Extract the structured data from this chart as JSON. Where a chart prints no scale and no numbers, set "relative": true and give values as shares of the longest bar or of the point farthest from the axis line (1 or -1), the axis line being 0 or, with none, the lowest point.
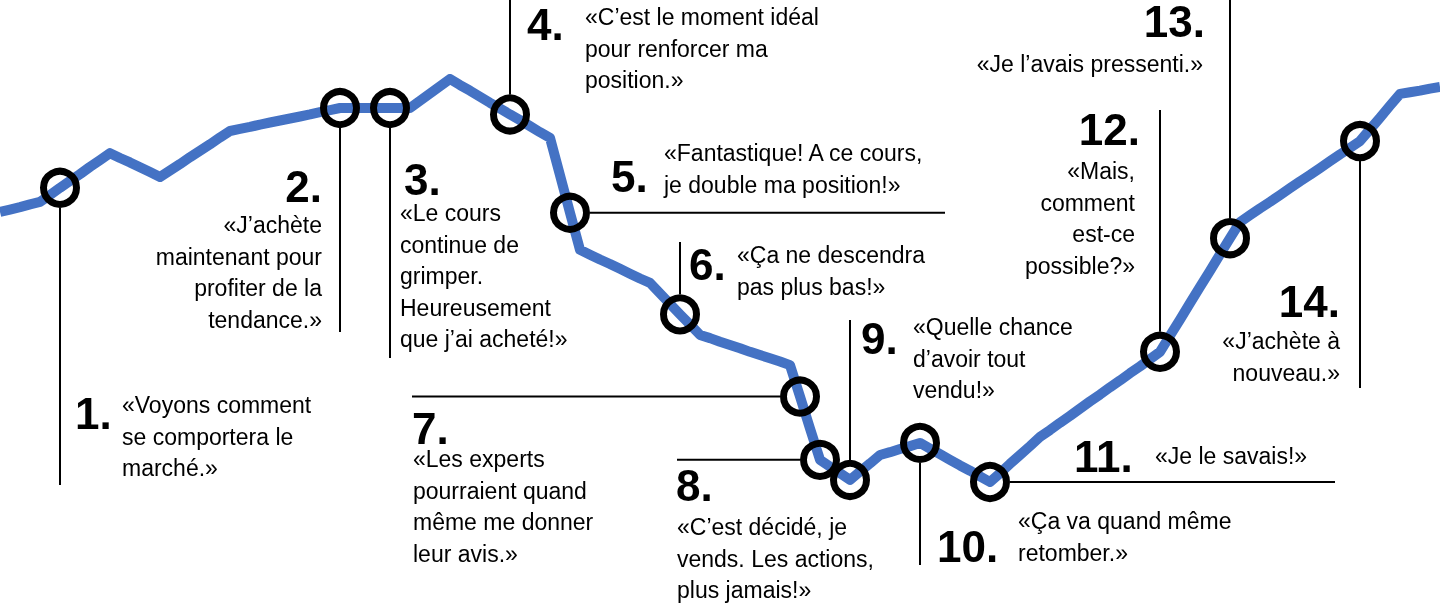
{
  "chart_data": {
    "type": "line",
    "relative": true,
    "categories": [
      null,
      null,
      null,
      null,
      null,
      null,
      null,
      null,
      null,
      null,
      null,
      null,
      null,
      null,
      null,
      null,
      null,
      null,
      null,
      null,
      null,
      null,
      null,
      null,
      null,
      null,
      null,
      null,
      null,
      null,
      null,
      null,
      null,
      null,
      null,
      null,
      null,
      null,
      null,
      null,
      null,
      null,
      null,
      null,
      null,
      null,
      null,
      null,
      null,
      null,
      null,
      null,
      null,
      null,
      null,
      null,
      null,
      null,
      null,
      null,
      null,
      null,
      null,
      null,
      null,
      null,
      null,
      null,
      null,
      null,
      null,
      null,
      null,
      null,
      null,
      null,
      null,
      null,
      null,
      null,
      null,
      null,
      null,
      null,
      null,
      null,
      null,
      null,
      null,
      null,
      null,
      null,
      null,
      null,
      null,
      null,
      null,
      null,
      null,
      null,
      null,
      null,
      null,
      null,
      null,
      null,
      null,
      null,
      null,
      null,
      null,
      null,
      null,
      null,
      null,
      null,
      null,
      null,
      null,
      null,
      null,
      null,
      null,
      null,
      null,
      null,
      null,
      null,
      null,
      null,
      null,
      null,
      null,
      null,
      null,
      null,
      null,
      null,
      null,
      null,
      null,
      null,
      null,
      null,
      null
    ],
    "series": [
      {
        "color": "#4472c4",
        "values": [
          0.67,
          0.676,
          0.682,
          0.689,
          0.695,
          0.712,
          0.73,
          0.747,
          0.764,
          0.782,
          0.799,
          0.816,
          0.804,
          0.793,
          0.781,
          0.769,
          0.757,
          0.773,
          0.789,
          0.806,
          0.822,
          0.838,
          0.855,
          0.871,
          0.876,
          0.881,
          0.887,
          0.892,
          0.897,
          0.902,
          0.907,
          0.912,
          0.918,
          0.923,
          0.928,
          0.928,
          0.928,
          0.928,
          0.928,
          0.928,
          0.928,
          0.928,
          0.946,
          0.964,
          0.982,
          1,
          0.985,
          0.971,
          0.956,
          0.941,
          0.927,
          0.912,
          0.898,
          0.883,
          0.868,
          0.854,
          0.761,
          0.668,
          0.576,
          0.564,
          0.552,
          0.541,
          0.529,
          0.517,
          0.505,
          0.494,
          0.468,
          0.442,
          0.416,
          0.391,
          0.365,
          0.357,
          0.348,
          0.34,
          0.332,
          0.323,
          0.315,
          0.307,
          0.299,
          0.29,
          0.212,
          0.133,
          0.055,
          0.038,
          0.022,
          0.005,
          0.026,
          0.046,
          0.067,
          0.074,
          0.082,
          0.089,
          0.097,
          0.083,
          0.069,
          0.055,
          0.041,
          0.028,
          0.014,
          0,
          0.022,
          0.045,
          0.067,
          0.089,
          0.112,
          0.129,
          0.147,
          0.164,
          0.182,
          0.2,
          0.217,
          0.235,
          0.252,
          0.27,
          0.287,
          0.305,
          0.323,
          0.363,
          0.403,
          0.444,
          0.484,
          0.524,
          0.565,
          0.605,
          0.645,
          0.662,
          0.679,
          0.695,
          0.712,
          0.729,
          0.746,
          0.762,
          0.779,
          0.796,
          0.813,
          0.829,
          0.846,
          0.875,
          0.904,
          0.934,
          0.963,
          0.967,
          0.971,
          0.976,
          0.98
        ]
      }
    ],
    "annotations": [
      "1.",
      "«Voyons comment\nse comportera le\nmarché.»",
      "2.",
      "«J’achète\nmaintenant pour\nprofiter de la\ntendance.»",
      "3.",
      "«Le cours\ncontinue de\ngrimper.\nHeureusement\nque j’ai acheté!»",
      "4.",
      "«C’est le moment idéal\npour renforcer ma\nposition.»",
      "5.",
      "«Fantastique! A ce cours,\nje double ma position!»",
      "6.",
      "«Ça ne descendra\npas plus bas!»",
      "7.",
      "«Les experts\npourraient quand\nmême me donner\nleur avis.»",
      "8.",
      "«C’est décidé, je\nvends. Les actions,\nplus jamais!»",
      "9.",
      "«Quelle chance\nd’avoir tout\nvendu!»",
      "10.",
      "«Ça va quand même\nretomber.»",
      "11.",
      "«Je le savais!»",
      "12.",
      "«Mais,\ncomment\nest-ce\npossible?»",
      "13.",
      "«Je l’avais pressenti.»",
      "14.",
      "«J’achète à\nnouveau.»"
    ]
  }
}
